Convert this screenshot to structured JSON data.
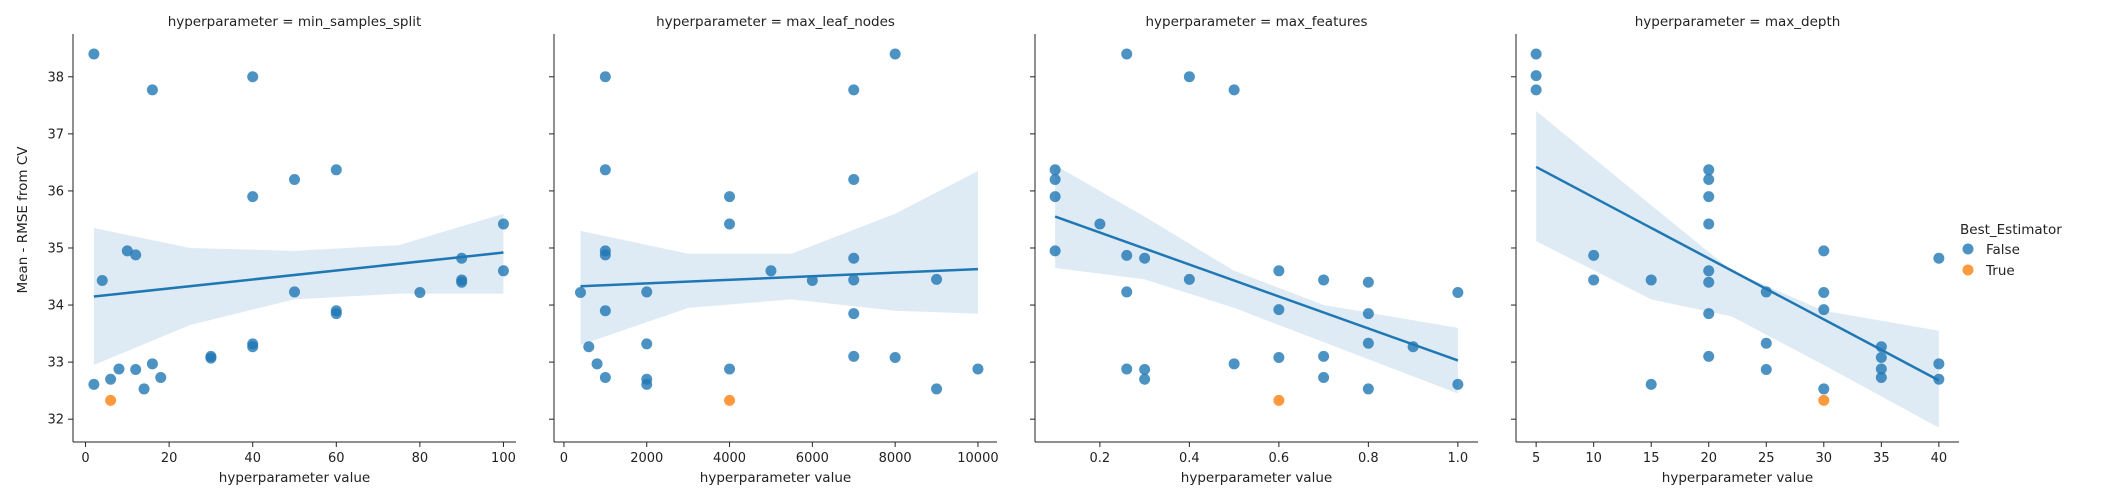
{
  "chart_data": {
    "type": "scatter",
    "ylabel": "Mean - RMSE from CV",
    "ylim": [
      31.6,
      38.75
    ],
    "yticks": [
      32,
      33,
      34,
      35,
      36,
      37,
      38
    ],
    "colors": {
      "False": "#1f77b4",
      "True": "#ff7f0e",
      "line": "#1f77b4",
      "band": "#1f77b4"
    },
    "legend": {
      "title": "Best_Estimator",
      "placement": "right",
      "entries": [
        {
          "label": "False",
          "color": "#1f77b4"
        },
        {
          "label": "True",
          "color": "#ff7f0e"
        }
      ]
    },
    "facets": [
      {
        "title": "hyperparameter = min_samples_split",
        "xlabel": "hyperparameter value",
        "xlim": [
          -3,
          103
        ],
        "xticks": [
          0,
          20,
          40,
          60,
          80,
          100
        ],
        "xtick_labels": [
          "0",
          "20",
          "40",
          "60",
          "80",
          "100"
        ],
        "fit": {
          "x0": 2,
          "y0": 34.15,
          "x1": 100,
          "y1": 34.92
        },
        "band": [
          [
            2,
            35.35,
            32.95
          ],
          [
            25,
            35.0,
            33.65
          ],
          [
            50,
            34.95,
            34.1
          ],
          [
            75,
            35.05,
            34.2
          ],
          [
            100,
            35.6,
            34.2
          ]
        ],
        "points": [
          [
            2,
            38.4,
            false
          ],
          [
            16,
            37.77,
            false
          ],
          [
            40,
            38.0,
            false
          ],
          [
            40,
            35.9,
            false
          ],
          [
            50,
            36.2,
            false
          ],
          [
            60,
            36.37,
            false
          ],
          [
            100,
            35.42,
            false
          ],
          [
            10,
            34.95,
            false
          ],
          [
            12,
            34.88,
            false
          ],
          [
            90,
            34.82,
            false
          ],
          [
            4,
            34.43,
            false
          ],
          [
            90,
            34.44,
            false
          ],
          [
            90,
            34.4,
            false
          ],
          [
            100,
            34.6,
            false
          ],
          [
            50,
            34.23,
            false
          ],
          [
            80,
            34.22,
            false
          ],
          [
            60,
            33.9,
            false
          ],
          [
            60,
            33.85,
            false
          ],
          [
            40,
            33.32,
            false
          ],
          [
            40,
            33.27,
            false
          ],
          [
            30,
            33.1,
            false
          ],
          [
            30,
            33.07,
            false
          ],
          [
            16,
            32.97,
            false
          ],
          [
            8,
            32.88,
            false
          ],
          [
            12,
            32.87,
            false
          ],
          [
            6,
            32.7,
            false
          ],
          [
            18,
            32.73,
            false
          ],
          [
            2,
            32.61,
            false
          ],
          [
            14,
            32.53,
            false
          ],
          [
            6,
            32.33,
            true
          ]
        ]
      },
      {
        "title": "hyperparameter = max_leaf_nodes",
        "xlabel": "hyperparameter value",
        "xlim": [
          -240,
          10460
        ],
        "xticks": [
          0,
          2000,
          4000,
          6000,
          8000,
          10000
        ],
        "xtick_labels": [
          "0",
          "2000",
          "4000",
          "6000",
          "8000",
          "10000"
        ],
        "fit": {
          "x0": 400,
          "y0": 34.33,
          "x1": 10000,
          "y1": 34.63
        },
        "band": [
          [
            400,
            35.3,
            33.3
          ],
          [
            3000,
            34.9,
            33.95
          ],
          [
            5500,
            34.9,
            34.1
          ],
          [
            8000,
            35.6,
            33.9
          ],
          [
            10000,
            36.35,
            33.85
          ]
        ],
        "points": [
          [
            8000,
            38.4,
            false
          ],
          [
            1000,
            38.0,
            false
          ],
          [
            7000,
            37.77,
            false
          ],
          [
            1000,
            36.37,
            false
          ],
          [
            7000,
            36.2,
            false
          ],
          [
            4000,
            35.9,
            false
          ],
          [
            4000,
            35.42,
            false
          ],
          [
            1000,
            34.95,
            false
          ],
          [
            1000,
            34.88,
            false
          ],
          [
            7000,
            34.82,
            false
          ],
          [
            5000,
            34.6,
            false
          ],
          [
            6000,
            34.43,
            false
          ],
          [
            7000,
            34.44,
            false
          ],
          [
            9000,
            34.45,
            false
          ],
          [
            400,
            34.22,
            false
          ],
          [
            2000,
            34.23,
            false
          ],
          [
            1000,
            33.9,
            false
          ],
          [
            7000,
            33.85,
            false
          ],
          [
            2000,
            33.32,
            false
          ],
          [
            600,
            33.27,
            false
          ],
          [
            7000,
            33.1,
            false
          ],
          [
            8000,
            33.08,
            false
          ],
          [
            800,
            32.97,
            false
          ],
          [
            4000,
            32.88,
            false
          ],
          [
            10000,
            32.88,
            false
          ],
          [
            1000,
            32.73,
            false
          ],
          [
            2000,
            32.7,
            false
          ],
          [
            2000,
            32.61,
            false
          ],
          [
            9000,
            32.53,
            false
          ],
          [
            4000,
            32.33,
            true
          ]
        ]
      },
      {
        "title": "hyperparameter = max_features",
        "xlabel": "hyperparameter value",
        "xlim": [
          0.055,
          1.045
        ],
        "xticks": [
          0.2,
          0.4,
          0.6,
          0.8,
          1.0
        ],
        "xtick_labels": [
          "0.2",
          "0.4",
          "0.6",
          "0.8",
          "1.0"
        ],
        "fit": {
          "x0": 0.1,
          "y0": 35.55,
          "x1": 1.0,
          "y1": 33.03
        },
        "band": [
          [
            0.1,
            36.45,
            34.65
          ],
          [
            0.3,
            35.55,
            34.45
          ],
          [
            0.5,
            34.6,
            33.95
          ],
          [
            0.7,
            34.0,
            33.35
          ],
          [
            1.0,
            33.6,
            32.45
          ]
        ],
        "points": [
          [
            0.26,
            38.4,
            false
          ],
          [
            0.4,
            38.0,
            false
          ],
          [
            0.5,
            37.77,
            false
          ],
          [
            0.1,
            36.37,
            false
          ],
          [
            0.1,
            36.2,
            false
          ],
          [
            0.1,
            35.9,
            false
          ],
          [
            0.2,
            35.42,
            false
          ],
          [
            0.1,
            34.95,
            false
          ],
          [
            0.26,
            34.87,
            false
          ],
          [
            0.3,
            34.82,
            false
          ],
          [
            0.6,
            34.6,
            false
          ],
          [
            0.4,
            34.45,
            false
          ],
          [
            0.7,
            34.44,
            false
          ],
          [
            0.8,
            34.4,
            false
          ],
          [
            0.26,
            34.23,
            false
          ],
          [
            1.0,
            34.22,
            false
          ],
          [
            0.6,
            33.92,
            false
          ],
          [
            0.8,
            33.85,
            false
          ],
          [
            0.8,
            33.33,
            false
          ],
          [
            0.9,
            33.27,
            false
          ],
          [
            0.6,
            33.08,
            false
          ],
          [
            0.7,
            33.1,
            false
          ],
          [
            0.5,
            32.97,
            false
          ],
          [
            0.26,
            32.88,
            false
          ],
          [
            0.3,
            32.87,
            false
          ],
          [
            0.3,
            32.7,
            false
          ],
          [
            0.7,
            32.73,
            false
          ],
          [
            1.0,
            32.61,
            false
          ],
          [
            0.8,
            32.53,
            false
          ],
          [
            0.6,
            32.33,
            true
          ]
        ]
      },
      {
        "title": "hyperparameter = max_depth",
        "xlabel": "hyperparameter value",
        "xlim": [
          3.25,
          41.75
        ],
        "xticks": [
          5,
          10,
          15,
          20,
          25,
          30,
          35,
          40
        ],
        "xtick_labels": [
          "5",
          "10",
          "15",
          "20",
          "25",
          "30",
          "35",
          "40"
        ],
        "fit": {
          "x0": 5,
          "y0": 36.42,
          "x1": 40,
          "y1": 32.68
        },
        "band": [
          [
            5,
            37.4,
            35.12
          ],
          [
            15,
            35.75,
            34.1
          ],
          [
            22,
            34.6,
            33.8
          ],
          [
            30,
            33.9,
            32.95
          ],
          [
            40,
            33.55,
            31.85
          ]
        ],
        "points": [
          [
            5,
            38.4,
            false
          ],
          [
            5,
            38.02,
            false
          ],
          [
            5,
            37.77,
            false
          ],
          [
            20,
            36.37,
            false
          ],
          [
            20,
            36.2,
            false
          ],
          [
            20,
            35.9,
            false
          ],
          [
            20,
            35.42,
            false
          ],
          [
            30,
            34.95,
            false
          ],
          [
            10,
            34.87,
            false
          ],
          [
            40,
            34.82,
            false
          ],
          [
            20,
            34.6,
            false
          ],
          [
            10,
            34.44,
            false
          ],
          [
            15,
            34.44,
            false
          ],
          [
            20,
            34.4,
            false
          ],
          [
            25,
            34.23,
            false
          ],
          [
            30,
            34.22,
            false
          ],
          [
            30,
            33.92,
            false
          ],
          [
            20,
            33.85,
            false
          ],
          [
            25,
            33.33,
            false
          ],
          [
            35,
            33.27,
            false
          ],
          [
            20,
            33.1,
            false
          ],
          [
            35,
            33.08,
            false
          ],
          [
            40,
            32.97,
            false
          ],
          [
            25,
            32.87,
            false
          ],
          [
            35,
            32.88,
            false
          ],
          [
            35,
            32.73,
            false
          ],
          [
            40,
            32.7,
            false
          ],
          [
            15,
            32.61,
            false
          ],
          [
            30,
            32.53,
            false
          ],
          [
            30,
            32.33,
            true
          ]
        ]
      }
    ]
  }
}
